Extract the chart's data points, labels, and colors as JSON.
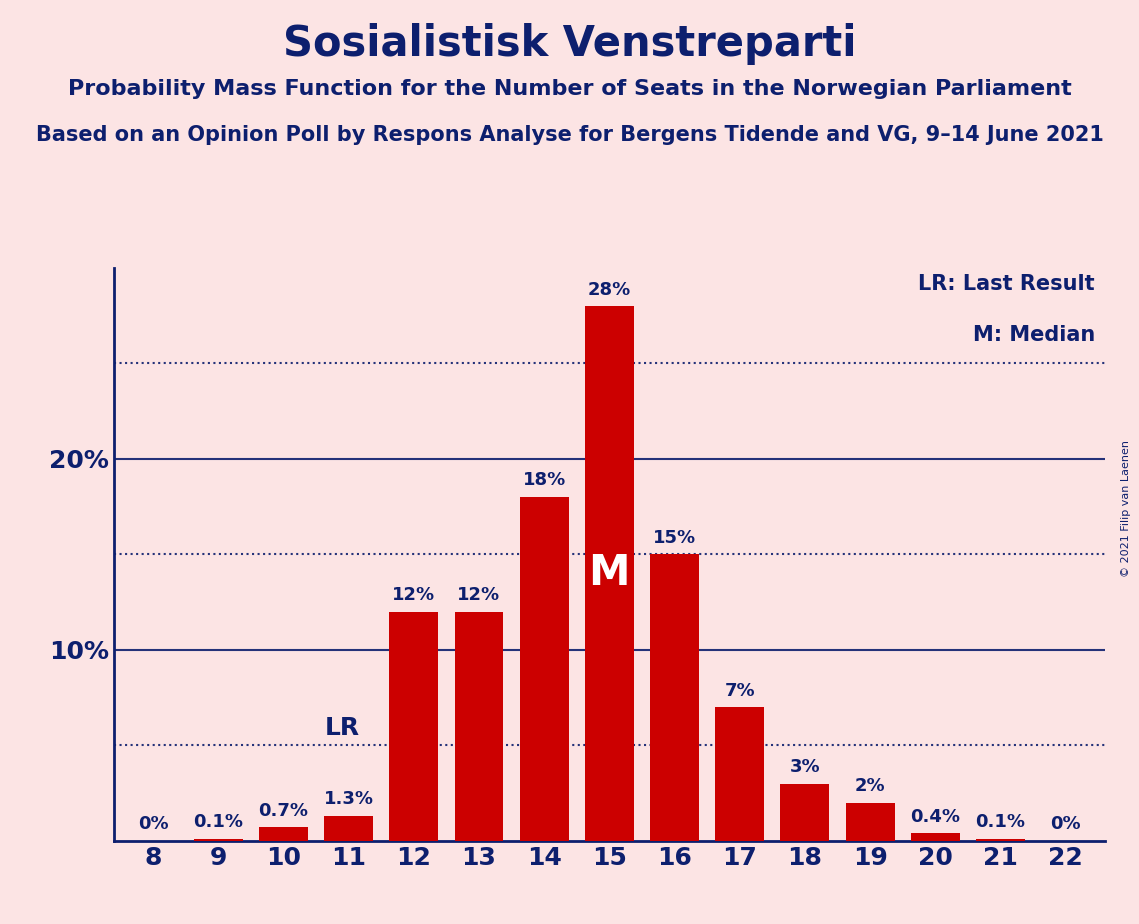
{
  "title": "Sosialistisk Venstreparti",
  "subtitle1": "Probability Mass Function for the Number of Seats in the Norwegian Parliament",
  "subtitle2": "Based on an Opinion Poll by Respons Analyse for Bergens Tidende and VG, 9–14 June 2021",
  "copyright": "© 2021 Filip van Laenen",
  "seats": [
    8,
    9,
    10,
    11,
    12,
    13,
    14,
    15,
    16,
    17,
    18,
    19,
    20,
    21,
    22
  ],
  "probabilities": [
    0.0,
    0.1,
    0.7,
    1.3,
    12.0,
    12.0,
    18.0,
    28.0,
    15.0,
    7.0,
    3.0,
    2.0,
    0.4,
    0.1,
    0.0
  ],
  "bar_color": "#cc0000",
  "background_color": "#fce4e4",
  "text_color": "#0d1f6e",
  "axis_color": "#0d1f6e",
  "lr_seat": 11,
  "lr_value": 5.0,
  "median_seat": 15,
  "ylim": [
    0,
    30
  ],
  "yticks": [
    10,
    20
  ],
  "ytick_labels": [
    "10%",
    "20%"
  ],
  "legend_lr": "LR: Last Result",
  "legend_m": "M: Median",
  "dotted_lines": [
    5.0,
    15.0,
    25.0
  ],
  "title_fontsize": 30,
  "subtitle1_fontsize": 16,
  "subtitle2_fontsize": 15,
  "bar_label_fontsize": 13,
  "ytick_fontsize": 18,
  "xtick_fontsize": 18,
  "legend_fontsize": 15,
  "lr_fontsize": 18,
  "median_fontsize": 30,
  "copyright_fontsize": 8
}
